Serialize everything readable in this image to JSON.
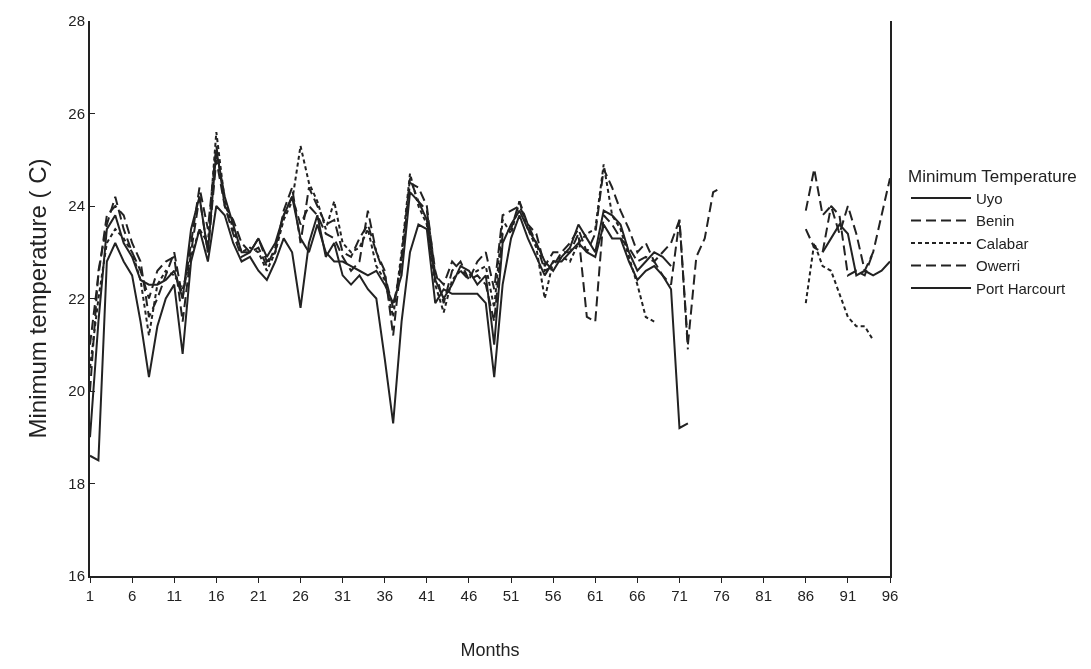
{
  "chart_data": {
    "type": "line",
    "xlabel": "Months",
    "ylabel": "Minimum temperature ( C)",
    "legend_title": "Minimum Temperature",
    "x": [
      1,
      2,
      3,
      4,
      5,
      6,
      7,
      8,
      9,
      10,
      11,
      12,
      13,
      14,
      15,
      16,
      17,
      18,
      19,
      20,
      21,
      22,
      23,
      24,
      25,
      26,
      27,
      28,
      29,
      30,
      31,
      32,
      33,
      34,
      35,
      36,
      37,
      38,
      39,
      40,
      41,
      42,
      43,
      44,
      45,
      46,
      47,
      48,
      49,
      50,
      51,
      52,
      53,
      54,
      55,
      56,
      57,
      58,
      59,
      60,
      61,
      62,
      63,
      64,
      65,
      66,
      67,
      68,
      69,
      70,
      71,
      72,
      73,
      74,
      75,
      76,
      77,
      78,
      79,
      80,
      81,
      82,
      83,
      84,
      85,
      86,
      87,
      88,
      89,
      90,
      91,
      92,
      93,
      94,
      95,
      96
    ],
    "xlim": [
      1,
      96
    ],
    "xticks": [
      1,
      6,
      11,
      16,
      21,
      26,
      31,
      36,
      41,
      46,
      51,
      56,
      61,
      66,
      71,
      76,
      81,
      86,
      91,
      96
    ],
    "ylim": [
      16,
      28
    ],
    "yticks": [
      16,
      18,
      20,
      22,
      24,
      26,
      28
    ],
    "legend": "right",
    "marker": "none",
    "series": [
      {
        "name": "Uyo",
        "color": "#222222",
        "line_style": "solid",
        "values": [
          19.0,
          21.5,
          23.5,
          23.8,
          23.2,
          22.9,
          22.4,
          22.3,
          22.3,
          22.4,
          22.6,
          22.0,
          23.5,
          24.2,
          23.0,
          25.2,
          24.2,
          23.6,
          23.0,
          23.0,
          23.3,
          22.9,
          23.2,
          23.8,
          24.2,
          23.3,
          23.0,
          23.6,
          23.0,
          22.8,
          22.8,
          22.7,
          22.6,
          22.5,
          22.6,
          22.3,
          21.9,
          22.5,
          24.3,
          24.1,
          23.7,
          22.4,
          22.0,
          22.3,
          22.7,
          22.6,
          22.3,
          22.5,
          21.0,
          23.2,
          23.6,
          23.9,
          23.5,
          23.2,
          22.8,
          22.6,
          22.9,
          23.1,
          23.6,
          23.3,
          23.0,
          23.9,
          23.8,
          23.6,
          23.0,
          22.6,
          22.8,
          23.0,
          22.9,
          22.7,
          null,
          null,
          null,
          null,
          null,
          null,
          null,
          null,
          null,
          null,
          null,
          null,
          null,
          null,
          null,
          null,
          null,
          null,
          null,
          null,
          null,
          null,
          null,
          null,
          null,
          null
        ]
      },
      {
        "name": "Benin",
        "color": "#222222",
        "line_style": "dashed",
        "values": [
          21.0,
          22.5,
          23.8,
          24.0,
          23.8,
          23.2,
          22.8,
          21.6,
          22.0,
          22.5,
          23.0,
          22.0,
          23.2,
          24.4,
          23.5,
          25.3,
          24.0,
          23.7,
          23.2,
          23.0,
          23.3,
          22.8,
          23.0,
          23.9,
          24.4,
          23.2,
          24.4,
          24.0,
          23.6,
          23.7,
          23.0,
          22.9,
          23.3,
          23.6,
          23.0,
          22.5,
          21.8,
          22.8,
          24.5,
          24.4,
          24.0,
          22.5,
          22.3,
          22.8,
          22.6,
          22.4,
          22.8,
          23.0,
          22.2,
          23.8,
          23.9,
          24.0,
          23.6,
          23.4,
          22.7,
          23.0,
          23.0,
          23.2,
          23.5,
          23.0,
          23.4,
          24.8,
          24.4,
          23.9,
          23.5,
          23.0,
          23.2,
          22.8,
          23.0,
          23.2,
          23.7,
          21.0,
          22.9,
          23.3,
          24.3,
          24.4,
          null,
          null,
          null,
          null,
          null,
          null,
          null,
          null,
          null,
          23.9,
          24.8,
          23.8,
          24.0,
          23.4,
          24.0,
          23.4,
          22.6,
          23.0,
          23.8,
          24.6
        ]
      },
      {
        "name": "Calabar",
        "color": "#222222",
        "line_style": "dotted",
        "values": [
          20.5,
          22.0,
          23.2,
          23.5,
          23.3,
          23.0,
          22.4,
          21.2,
          22.3,
          22.6,
          22.5,
          22.2,
          22.9,
          23.5,
          23.2,
          25.6,
          24.1,
          23.5,
          23.0,
          23.1,
          23.0,
          22.6,
          23.0,
          23.7,
          24.1,
          25.3,
          24.5,
          24.1,
          23.5,
          24.1,
          23.2,
          23.0,
          23.1,
          23.5,
          22.7,
          22.4,
          21.6,
          23.0,
          24.7,
          24.0,
          23.6,
          22.3,
          21.7,
          22.4,
          22.6,
          22.5,
          22.6,
          22.7,
          21.8,
          23.7,
          23.4,
          24.1,
          23.5,
          23.1,
          22.0,
          22.8,
          22.9,
          22.8,
          23.2,
          23.4,
          23.5,
          24.9,
          23.8,
          23.5,
          22.9,
          22.3,
          21.6,
          21.5,
          null,
          null,
          null,
          null,
          null,
          null,
          null,
          null,
          null,
          null,
          null,
          null,
          null,
          null,
          null,
          null,
          null,
          21.9,
          23.2,
          22.7,
          22.6,
          22.1,
          21.6,
          21.4,
          21.4,
          21.1,
          null,
          null
        ]
      },
      {
        "name": "Owerri",
        "color": "#222222",
        "line_style": "dashed",
        "values": [
          20.0,
          22.6,
          23.6,
          24.2,
          23.5,
          23.0,
          22.6,
          22.0,
          22.6,
          22.8,
          22.9,
          21.5,
          23.0,
          24.2,
          23.0,
          25.0,
          24.0,
          23.4,
          22.9,
          23.0,
          23.1,
          22.7,
          23.1,
          23.8,
          24.2,
          23.6,
          24.0,
          23.8,
          23.4,
          23.3,
          22.9,
          22.6,
          22.8,
          23.9,
          23.0,
          22.6,
          21.2,
          22.9,
          24.6,
          24.1,
          23.9,
          22.6,
          21.9,
          22.6,
          22.8,
          22.4,
          22.5,
          22.3,
          21.5,
          23.4,
          23.5,
          24.1,
          23.6,
          23.2,
          22.6,
          22.7,
          23.0,
          23.0,
          23.4,
          21.6,
          21.5,
          23.8,
          23.6,
          23.3,
          23.1,
          22.8,
          22.9,
          22.8,
          22.5,
          22.3,
          23.7,
          20.9,
          null,
          null,
          null,
          null,
          null,
          null,
          null,
          null,
          null,
          null,
          null,
          null,
          null,
          23.5,
          23.1,
          23.0,
          24.0,
          23.8,
          22.5,
          22.6,
          22.5,
          23.0,
          null,
          null
        ]
      },
      {
        "name": "Port Harcourt",
        "color": "#222222",
        "line_style": "solid",
        "values": [
          18.6,
          18.5,
          22.8,
          23.2,
          22.8,
          22.5,
          21.5,
          20.3,
          21.4,
          22.0,
          22.3,
          20.8,
          22.8,
          23.5,
          22.8,
          24.0,
          23.8,
          23.2,
          22.8,
          22.9,
          22.6,
          22.4,
          22.8,
          23.3,
          23.0,
          21.8,
          23.2,
          23.8,
          22.9,
          23.2,
          22.5,
          22.3,
          22.5,
          22.2,
          22.0,
          20.7,
          19.3,
          21.5,
          23.0,
          23.6,
          23.5,
          21.9,
          22.2,
          22.1,
          22.1,
          22.1,
          22.1,
          21.9,
          20.3,
          22.3,
          23.3,
          23.8,
          23.3,
          22.9,
          22.5,
          22.8,
          22.8,
          23.0,
          23.2,
          23.0,
          22.9,
          23.6,
          23.3,
          23.3,
          22.8,
          22.4,
          22.6,
          22.7,
          22.5,
          22.2,
          19.2,
          19.3,
          null,
          null,
          null,
          null,
          null,
          null,
          null,
          null,
          null,
          null,
          null,
          null,
          null,
          null,
          null,
          23.0,
          23.3,
          23.6,
          23.4,
          22.5,
          22.6,
          22.5,
          22.6,
          22.8
        ]
      }
    ]
  }
}
